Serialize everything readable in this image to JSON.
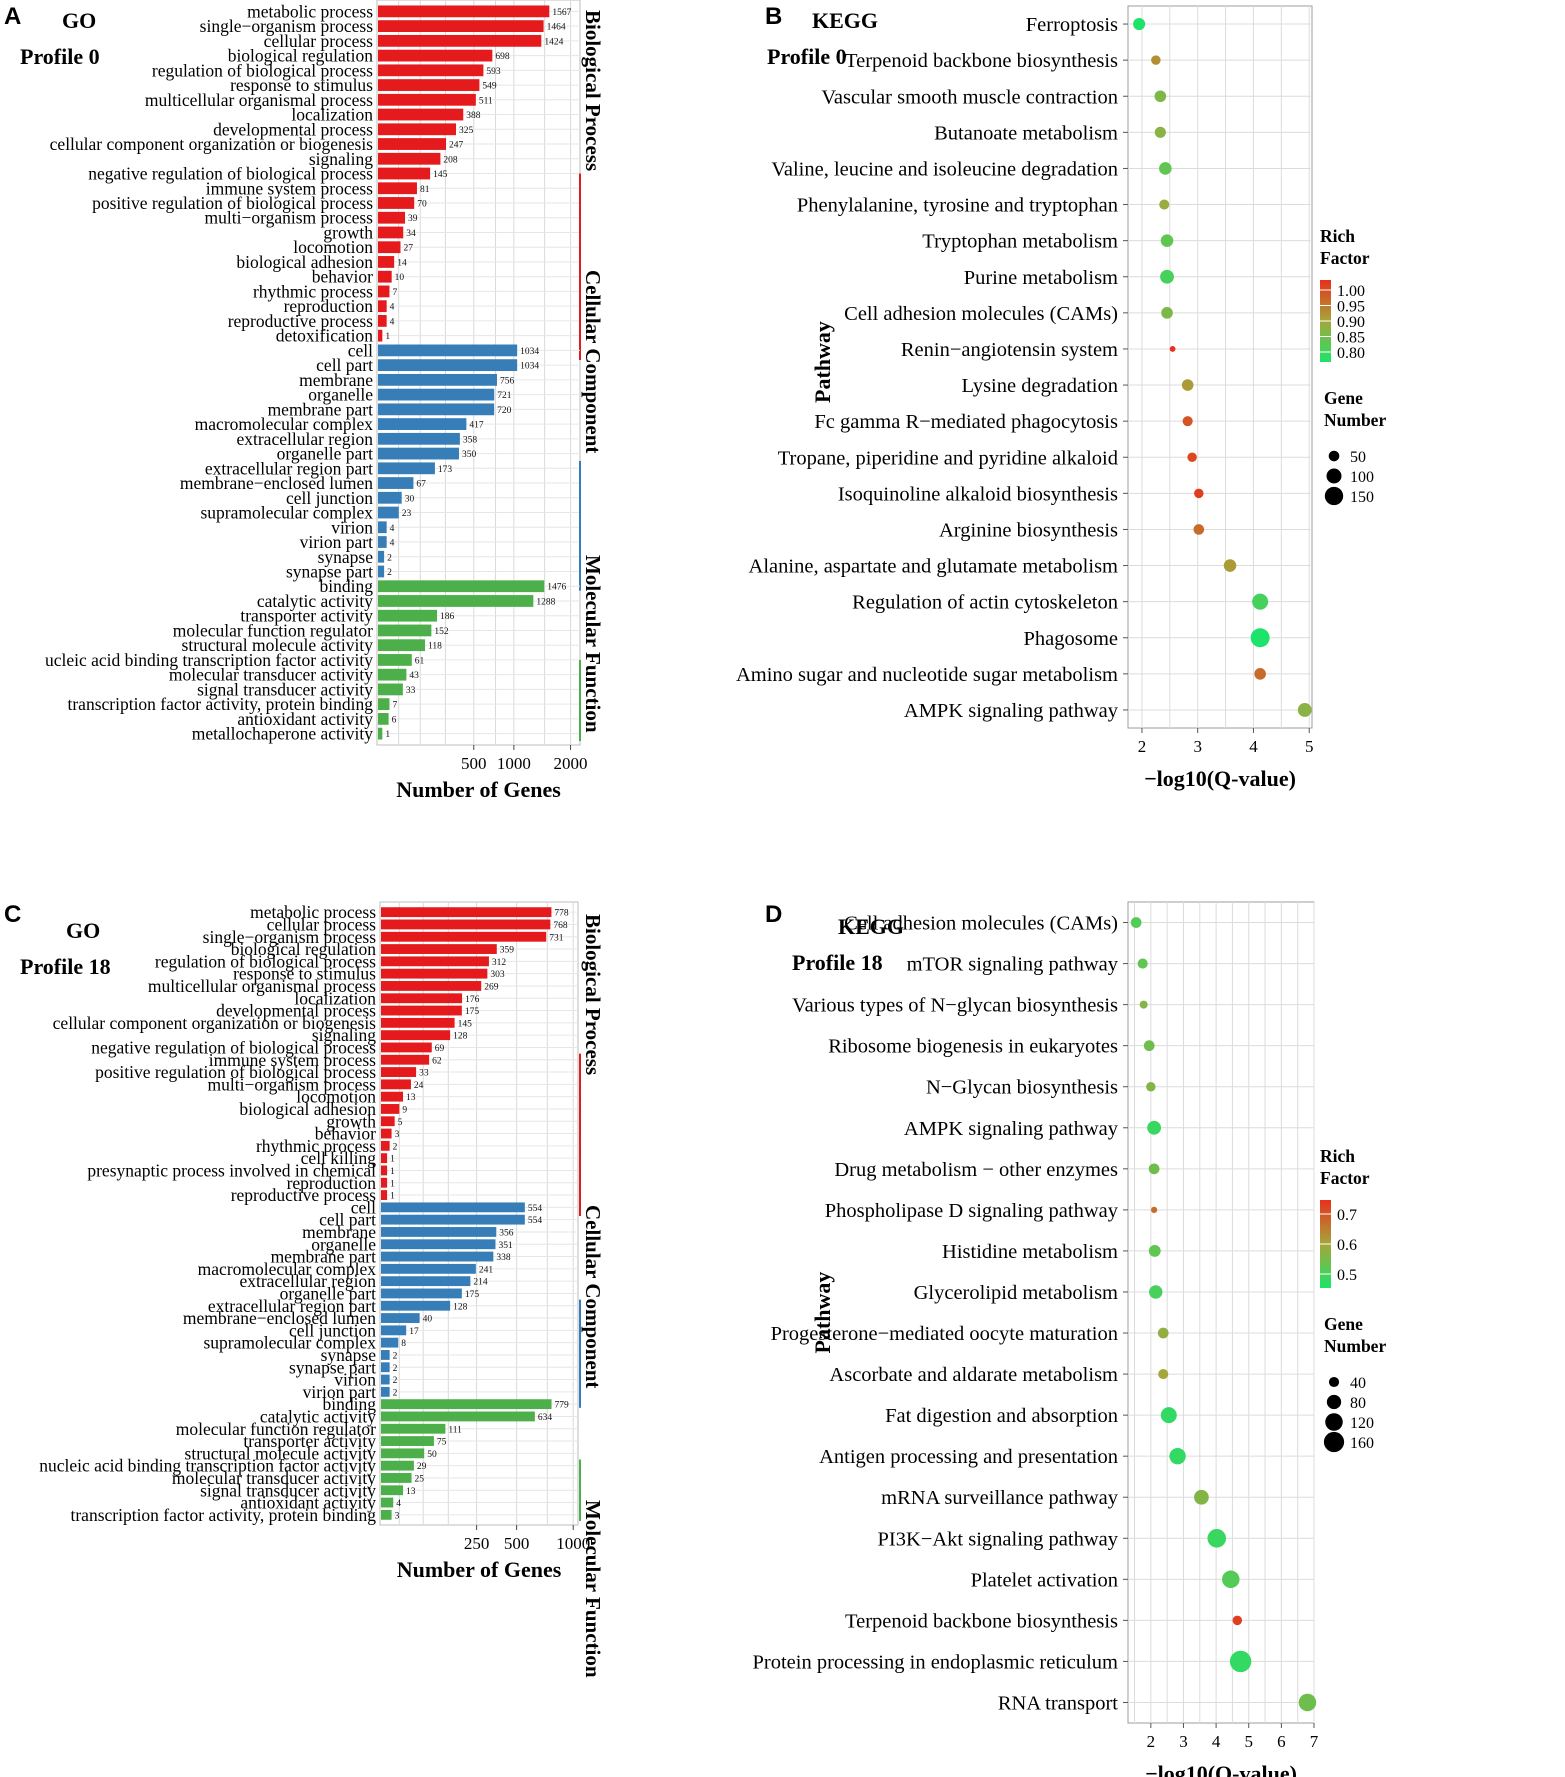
{
  "figure": {
    "panels": [
      {
        "letter": "A",
        "title": "GO",
        "profile": "Profile 0"
      },
      {
        "letter": "B",
        "title": "KEGG",
        "profile": "Profile 0"
      },
      {
        "letter": "C",
        "title": "GO",
        "profile": "Profile 18"
      },
      {
        "letter": "D",
        "title": "KEGG",
        "profile": "Profile 18"
      }
    ],
    "go_xlabel": "Number of Genes",
    "kegg_xlabel": "−log10(Q-value)",
    "kegg_ylabel": "Pathway",
    "rich_factor_title_1": "Rich",
    "rich_factor_title_2": "Factor",
    "gene_number_title_1": "Gene",
    "gene_number_title_2": "Number"
  },
  "colors": {
    "biological_process": "#e41a1c",
    "cellular_component": "#377eb8",
    "molecular_function": "#4daf4a",
    "rich_low": "#1ee36a",
    "rich_mid": "#a5a63a",
    "rich_high": "#e8311c"
  },
  "chart_data": [
    {
      "type": "bar",
      "orientation": "horizontal",
      "panel": "A",
      "title": "GO Profile 0",
      "xlabel": "Number of Genes",
      "xscale": "sqrt",
      "xticks": [
        500,
        1000,
        2000
      ],
      "xlim": [
        0,
        2200
      ],
      "groups": [
        {
          "name": "Biological Process",
          "color": "#e41a1c",
          "categories": [
            "metabolic process",
            "single−organism process",
            "cellular process",
            "biological regulation",
            "regulation of biological process",
            "response to stimulus",
            "multicellular organismal process",
            "localization",
            "developmental process",
            "cellular component organization or biogenesis",
            "signaling",
            "negative regulation of biological process",
            "immune system process",
            "positive regulation of biological process",
            "multi−organism process",
            "growth",
            "locomotion",
            "biological adhesion",
            "behavior",
            "rhythmic process",
            "reproduction",
            "reproductive process",
            "detoxification"
          ],
          "values": [
            1567,
            1464,
            1424,
            698,
            593,
            549,
            511,
            388,
            325,
            247,
            208,
            145,
            81,
            70,
            39,
            34,
            27,
            14,
            10,
            7,
            4,
            4,
            1
          ]
        },
        {
          "name": "Cellular Component",
          "color": "#377eb8",
          "categories": [
            "cell",
            "cell part",
            "membrane",
            "organelle",
            "membrane part",
            "macromolecular complex",
            "extracellular region",
            "organelle part",
            "extracellular region part",
            "membrane−enclosed lumen",
            "cell junction",
            "supramolecular complex",
            "virion",
            "virion part",
            "synapse",
            "synapse part"
          ],
          "values": [
            1034,
            1034,
            756,
            721,
            720,
            417,
            358,
            350,
            173,
            67,
            30,
            23,
            4,
            4,
            2,
            2
          ]
        },
        {
          "name": "Molecular Function",
          "color": "#4daf4a",
          "categories": [
            "binding",
            "catalytic activity",
            "transporter activity",
            "molecular function regulator",
            "structural molecule activity",
            "ucleic acid binding transcription factor activity",
            "molecular transducer activity",
            "signal transducer activity",
            "transcription factor activity, protein binding",
            "antioxidant activity",
            "metallochaperone activity"
          ],
          "values": [
            1476,
            1288,
            186,
            152,
            118,
            61,
            43,
            33,
            7,
            6,
            1
          ]
        }
      ]
    },
    {
      "type": "scatter",
      "panel": "B",
      "title": "KEGG Profile 0",
      "xlabel": "−log10(Q-value)",
      "ylabel": "Pathway",
      "xlim": [
        1.75,
        5.05
      ],
      "xticks": [
        2,
        3,
        4,
        5
      ],
      "rich_factor_range": [
        0.8,
        1.0
      ],
      "rich_ticks": [
        "1.00",
        "0.95",
        "0.90",
        "0.85",
        "0.80"
      ],
      "gene_legend": [
        50,
        100,
        150
      ],
      "points": [
        {
          "pathway": "Ferroptosis",
          "x": 1.95,
          "rich": 0.8,
          "genes": 65
        },
        {
          "pathway": "Terpenoid backbone biosynthesis",
          "x": 2.25,
          "rich": 0.92,
          "genes": 40
        },
        {
          "pathway": "Vascular smooth muscle contraction",
          "x": 2.33,
          "rich": 0.87,
          "genes": 60
        },
        {
          "pathway": "Butanoate metabolism",
          "x": 2.33,
          "rich": 0.88,
          "genes": 55
        },
        {
          "pathway": "Valine, leucine and isoleucine degradation",
          "x": 2.42,
          "rich": 0.85,
          "genes": 70
        },
        {
          "pathway": "Phenylalanine, tyrosine and tryptophan",
          "x": 2.4,
          "rich": 0.89,
          "genes": 45
        },
        {
          "pathway": "Tryptophan metabolism",
          "x": 2.45,
          "rich": 0.85,
          "genes": 70
        },
        {
          "pathway": "Purine metabolism",
          "x": 2.45,
          "rich": 0.83,
          "genes": 85
        },
        {
          "pathway": "Cell adhesion molecules (CAMs)",
          "x": 2.45,
          "rich": 0.87,
          "genes": 60
        },
        {
          "pathway": "Renin−angiotensin system",
          "x": 2.55,
          "rich": 1.0,
          "genes": 15
        },
        {
          "pathway": "Lysine degradation",
          "x": 2.82,
          "rich": 0.91,
          "genes": 60
        },
        {
          "pathway": "Fc gamma R−mediated phagocytosis",
          "x": 2.82,
          "rich": 0.97,
          "genes": 45
        },
        {
          "pathway": "Tropane, piperidine and pyridine alkaloid",
          "x": 2.9,
          "rich": 0.98,
          "genes": 40
        },
        {
          "pathway": "Isoquinoline alkaloid biosynthesis",
          "x": 3.02,
          "rich": 0.99,
          "genes": 40
        },
        {
          "pathway": "Arginine biosynthesis",
          "x": 3.02,
          "rich": 0.95,
          "genes": 50
        },
        {
          "pathway": "Alanine, aspartate and glutamate metabolism",
          "x": 3.58,
          "rich": 0.91,
          "genes": 70
        },
        {
          "pathway": "Regulation of actin cytoskeleton",
          "x": 4.12,
          "rich": 0.83,
          "genes": 115
        },
        {
          "pathway": "Phagosome",
          "x": 4.12,
          "rich": 0.8,
          "genes": 160
        },
        {
          "pathway": "Amino sugar and nucleotide sugar metabolism",
          "x": 4.12,
          "rich": 0.95,
          "genes": 60
        },
        {
          "pathway": "AMPK signaling pathway",
          "x": 4.92,
          "rich": 0.88,
          "genes": 85
        }
      ]
    },
    {
      "type": "bar",
      "orientation": "horizontal",
      "panel": "C",
      "title": "GO Profile 18",
      "xlabel": "Number of Genes",
      "xscale": "sqrt",
      "xticks": [
        250,
        500,
        1000
      ],
      "xlim": [
        0,
        1050
      ],
      "groups": [
        {
          "name": "Biological Process",
          "color": "#e41a1c",
          "categories": [
            "metabolic process",
            "cellular process",
            "single−organism process",
            "biological regulation",
            "regulation of biological process",
            "response to stimulus",
            "multicellular organismal process",
            "localization",
            "developmental process",
            "cellular component organization or biogenesis",
            "signaling",
            "negative regulation of biological process",
            "immune system process",
            "positive regulation of biological process",
            "multi−organism process",
            "locomotion",
            "biological adhesion",
            "growth",
            "behavior",
            "rhythmic process",
            "cell killing",
            "presynaptic process involved in chemical",
            "reproduction",
            "reproductive process"
          ],
          "values": [
            778,
            768,
            731,
            359,
            312,
            303,
            269,
            176,
            175,
            145,
            128,
            69,
            62,
            33,
            24,
            13,
            9,
            5,
            3,
            2,
            1,
            1,
            1,
            1
          ]
        },
        {
          "name": "Cellular Component",
          "color": "#377eb8",
          "categories": [
            "cell",
            "cell part",
            "membrane",
            "organelle",
            "membrane part",
            "macromolecular complex",
            "extracellular region",
            "organelle part",
            "extracellular region part",
            "membrane−enclosed lumen",
            "cell junction",
            "supramolecular complex",
            "synapse",
            "synapse part",
            "virion",
            "virion part"
          ],
          "values": [
            554,
            554,
            356,
            351,
            338,
            241,
            214,
            175,
            128,
            40,
            17,
            8,
            2,
            2,
            2,
            2
          ]
        },
        {
          "name": "Molecular Function",
          "color": "#4daf4a",
          "categories": [
            "binding",
            "catalytic activity",
            "molecular function regulator",
            "transporter activity",
            "structural molecule activity",
            "nucleic acid binding transcription factor activity",
            "molecular transducer activity",
            "signal transducer activity",
            "antioxidant activity",
            "transcription factor activity, protein binding"
          ],
          "values": [
            779,
            634,
            111,
            75,
            50,
            29,
            25,
            13,
            4,
            3
          ]
        }
      ]
    },
    {
      "type": "scatter",
      "panel": "D",
      "title": "KEGG Profile 18",
      "xlabel": "−log10(Q-value)",
      "ylabel": "Pathway",
      "xlim": [
        1.3,
        7.0
      ],
      "xticks": [
        2,
        3,
        4,
        5,
        6,
        7
      ],
      "rich_factor_range": [
        0.4,
        0.8
      ],
      "rich_ticks": [
        "0.7",
        "0.6",
        "0.5"
      ],
      "gene_legend": [
        40,
        80,
        120,
        160
      ],
      "points": [
        {
          "pathway": "Cell adhesion molecules (CAMs)",
          "x": 1.55,
          "rich": 0.48,
          "genes": 45
        },
        {
          "pathway": "mTOR signaling pathway",
          "x": 1.75,
          "rich": 0.5,
          "genes": 40
        },
        {
          "pathway": "Various types of N−glycan biosynthesis",
          "x": 1.78,
          "rich": 0.55,
          "genes": 25
        },
        {
          "pathway": "Ribosome biogenesis in eukaryotes",
          "x": 1.95,
          "rich": 0.52,
          "genes": 45
        },
        {
          "pathway": "N−Glycan biosynthesis",
          "x": 2.0,
          "rich": 0.55,
          "genes": 35
        },
        {
          "pathway": "AMPK signaling pathway",
          "x": 2.1,
          "rich": 0.44,
          "genes": 75
        },
        {
          "pathway": "Drug metabolism − other enzymes",
          "x": 2.1,
          "rich": 0.52,
          "genes": 45
        },
        {
          "pathway": "Phospholipase D signaling pathway",
          "x": 2.1,
          "rich": 0.7,
          "genes": 15
        },
        {
          "pathway": "Histidine metabolism",
          "x": 2.12,
          "rich": 0.5,
          "genes": 55
        },
        {
          "pathway": "Glycerolipid metabolism",
          "x": 2.15,
          "rich": 0.46,
          "genes": 70
        },
        {
          "pathway": "Progesterone−mediated oocyte maturation",
          "x": 2.38,
          "rich": 0.57,
          "genes": 45
        },
        {
          "pathway": "Ascorbate and aldarate metabolism",
          "x": 2.38,
          "rich": 0.6,
          "genes": 40
        },
        {
          "pathway": "Fat digestion and absorption",
          "x": 2.55,
          "rich": 0.43,
          "genes": 100
        },
        {
          "pathway": "Antigen processing and presentation",
          "x": 2.82,
          "rich": 0.43,
          "genes": 105
        },
        {
          "pathway": "mRNA surveillance pathway",
          "x": 3.55,
          "rich": 0.55,
          "genes": 85
        },
        {
          "pathway": "PI3K−Akt signaling pathway",
          "x": 4.02,
          "rich": 0.44,
          "genes": 135
        },
        {
          "pathway": "Platelet activation",
          "x": 4.45,
          "rich": 0.48,
          "genes": 120
        },
        {
          "pathway": "Terpenoid backbone biosynthesis",
          "x": 4.65,
          "rich": 0.78,
          "genes": 35
        },
        {
          "pathway": "Protein processing in endoplasmic reticulum",
          "x": 4.75,
          "rich": 0.43,
          "genes": 180
        },
        {
          "pathway": "RNA transport",
          "x": 6.8,
          "rich": 0.52,
          "genes": 120
        }
      ]
    }
  ]
}
